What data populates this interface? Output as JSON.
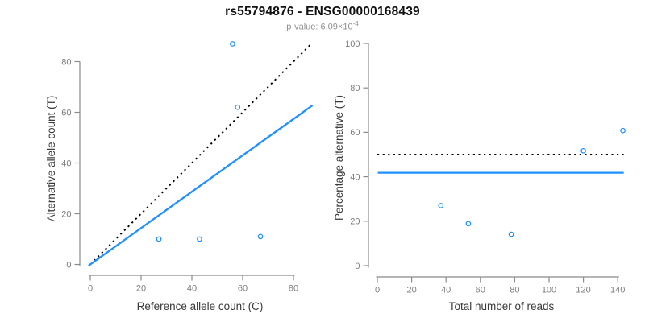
{
  "header": {
    "title": "rs55794876 - ENSG00000168439",
    "subtitle_prefix": "p-value: 6.09×10",
    "subtitle_exponent": "-4"
  },
  "colors": {
    "accent_blue": "#1E90FF",
    "reference_black": "#000000",
    "axis_line_gray": "#8a8a8a",
    "tick_label_gray": "#7d7d7d",
    "axis_label_dark": "#3a3a3a",
    "subtitle_gray": "#8f8f8f"
  },
  "chart_data": [
    {
      "type": "scatter",
      "name": "allele-counts-scatter",
      "xlabel": "Reference allele count (C)",
      "ylabel": "Alternative allele count (T)",
      "xticks": [
        0,
        20,
        40,
        60,
        80
      ],
      "yticks": [
        0,
        20,
        40,
        60,
        80
      ],
      "xlim": [
        0,
        86
      ],
      "ylim": [
        0,
        87
      ],
      "grid": false,
      "points": [
        [
          27,
          10
        ],
        [
          43,
          10
        ],
        [
          67,
          11
        ],
        [
          58,
          62
        ],
        [
          56,
          87
        ]
      ],
      "lines": [
        {
          "name": "expected-identity-line",
          "style": "dotted",
          "color_key": "reference_black",
          "slope": 1,
          "intercept": 0,
          "x_from": 1.5,
          "x_to": 87
        },
        {
          "name": "observed-ratio-line",
          "style": "solid",
          "color_key": "accent_blue",
          "slope": 0.717,
          "intercept": 0,
          "x_from": -0.7,
          "x_to": 87.5
        }
      ]
    },
    {
      "type": "scatter",
      "name": "percentage-vs-reads-scatter",
      "xlabel": "Total number of reads",
      "ylabel": "Percentage alternative (T)",
      "xticks": [
        0,
        20,
        40,
        60,
        80,
        100,
        120,
        140
      ],
      "yticks": [
        0,
        20,
        40,
        60,
        80,
        100
      ],
      "xlim": [
        0,
        143
      ],
      "ylim": [
        0,
        100
      ],
      "grid": false,
      "points": [
        [
          37,
          27
        ],
        [
          53,
          18.9
        ],
        [
          78,
          14.1
        ],
        [
          120,
          51.7
        ],
        [
          143,
          60.8
        ]
      ],
      "lines": [
        {
          "name": "expected-50-percent-line",
          "style": "dotted",
          "color_key": "reference_black",
          "slope": 0,
          "intercept": 50,
          "x_from": 0,
          "x_to": 143.5
        },
        {
          "name": "observed-percent-line",
          "style": "solid",
          "color_key": "accent_blue",
          "slope": 0,
          "intercept": 41.8,
          "x_from": 0.3,
          "x_to": 143.5
        }
      ]
    }
  ]
}
